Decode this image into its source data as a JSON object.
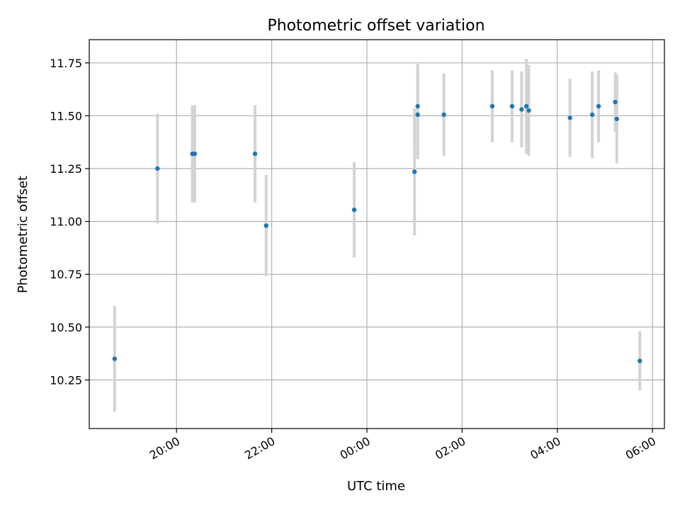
{
  "chart_data": {
    "type": "scatter",
    "title": "Photometric offset variation",
    "xlabel": "UTC time",
    "ylabel": "Photometric offset",
    "grid": true,
    "x_unit": "UTC time (HH:MM), points after midnight fall on the following day",
    "xlim": [
      "18:10",
      "06:15"
    ],
    "ylim": [
      10.02,
      11.86
    ],
    "x_ticks": [
      "20:00",
      "22:00",
      "00:00",
      "02:00",
      "04:00",
      "06:00"
    ],
    "y_ticks": [
      "10.25",
      "10.50",
      "10.75",
      "11.00",
      "11.25",
      "11.50",
      "11.75"
    ],
    "colors": {
      "points": "#1f77b4",
      "errorbars": "#d3d3d3",
      "grid": "#b0b0b0"
    },
    "series": [
      {
        "points": [
          {
            "x": "18:42",
            "y": 10.35,
            "err": 0.25
          },
          {
            "x": "19:36",
            "y": 11.25,
            "err": 0.26
          },
          {
            "x": "20:20",
            "y": 11.32,
            "err": 0.23
          },
          {
            "x": "20:23",
            "y": 11.32,
            "err": 0.23
          },
          {
            "x": "21:39",
            "y": 11.32,
            "err": 0.23
          },
          {
            "x": "21:53",
            "y": 10.98,
            "err": 0.24
          },
          {
            "x": "23:44",
            "y": 11.055,
            "err": 0.225
          },
          {
            "x": "01:00",
            "y": 11.235,
            "err": 0.3
          },
          {
            "x": "01:04",
            "y": 11.545,
            "err": 0.2
          },
          {
            "x": "01:04",
            "y": 11.505,
            "err": 0.21
          },
          {
            "x": "01:37",
            "y": 11.505,
            "err": 0.195
          },
          {
            "x": "02:38",
            "y": 11.545,
            "err": 0.17
          },
          {
            "x": "03:03",
            "y": 11.545,
            "err": 0.17
          },
          {
            "x": "03:15",
            "y": 11.53,
            "err": 0.18
          },
          {
            "x": "03:21",
            "y": 11.545,
            "err": 0.225
          },
          {
            "x": "03:24",
            "y": 11.525,
            "err": 0.215
          },
          {
            "x": "04:16",
            "y": 11.49,
            "err": 0.185
          },
          {
            "x": "04:44",
            "y": 11.505,
            "err": 0.205
          },
          {
            "x": "04:52",
            "y": 11.545,
            "err": 0.17
          },
          {
            "x": "05:13",
            "y": 11.565,
            "err": 0.14
          },
          {
            "x": "05:15",
            "y": 11.485,
            "err": 0.21
          },
          {
            "x": "05:44",
            "y": 10.34,
            "err": 0.14
          }
        ]
      }
    ]
  }
}
